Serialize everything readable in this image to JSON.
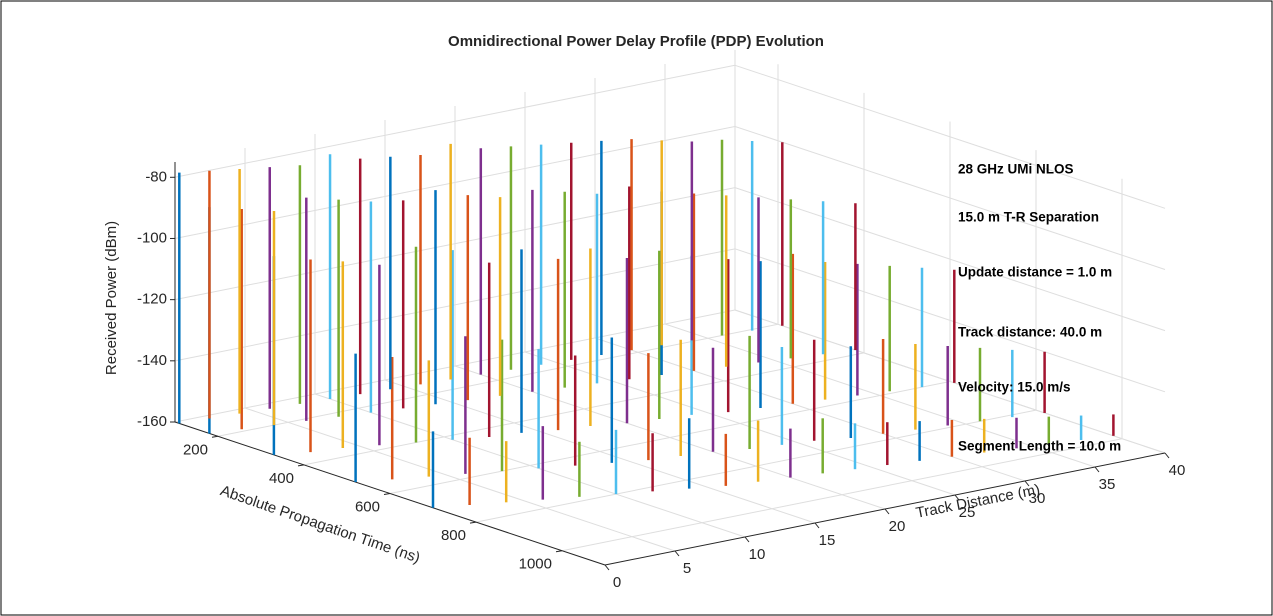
{
  "chart_data": {
    "type": "stem3",
    "title": "Omnidirectional Power Delay Profile (PDP) Evolution",
    "xlabel": "Track Distance (m)",
    "ylabel": "Absolute Propagation Time (ns)",
    "zlabel": "Received Power (dBm)",
    "xlim": [
      0,
      40
    ],
    "xticks": [
      0,
      5,
      10,
      15,
      20,
      25,
      30,
      35,
      40
    ],
    "ylim": [
      100,
      1100
    ],
    "yticks": [
      200,
      400,
      600,
      800,
      1000
    ],
    "zlim": [
      -160,
      -75
    ],
    "zticks": [
      -160,
      -140,
      -120,
      -100,
      -80
    ],
    "grid": true,
    "annotations": [
      "28 GHz UMi NLOS",
      "15.0 m T-R Separation",
      "Update distance = 1.0 m",
      "Track distance: 40.0 m",
      "Velocity: 15.0 m/s",
      "Segment Length = 10.0 m"
    ],
    "snapshots": [
      {
        "track": 0,
        "color": "#0072bd",
        "delay": [
          110,
          180,
          330,
          520,
          700
        ],
        "power": [
          -78,
          -86,
          -95,
          -118,
          -135
        ]
      },
      {
        "track": 2,
        "color": "#d95319",
        "delay": [
          115,
          190,
          350,
          540,
          720
        ],
        "power": [
          -79,
          -88,
          -97,
          -120,
          -138
        ]
      },
      {
        "track": 4,
        "color": "#edb120",
        "delay": [
          120,
          200,
          360,
          560,
          740
        ],
        "power": [
          -80,
          -90,
          -99,
          -122,
          -140
        ]
      },
      {
        "track": 6,
        "color": "#7e2f8e",
        "delay": [
          125,
          210,
          380,
          580,
          760
        ],
        "power": [
          -81,
          -87,
          -101,
          -115,
          -136
        ]
      },
      {
        "track": 8,
        "color": "#77ac30",
        "delay": [
          130,
          220,
          400,
          600,
          780
        ],
        "power": [
          -82,
          -89,
          -96,
          -117,
          -142
        ]
      },
      {
        "track": 10,
        "color": "#4dbeee",
        "delay": [
          135,
          230,
          420,
          620,
          800
        ],
        "power": [
          -80,
          -91,
          -98,
          -121,
          -139
        ]
      },
      {
        "track": 12,
        "color": "#a2142f",
        "delay": [
          140,
          240,
          440,
          640,
          820
        ],
        "power": [
          -83,
          -92,
          -103,
          -124,
          -141
        ]
      },
      {
        "track": 14,
        "color": "#0072bd",
        "delay": [
          145,
          250,
          450,
          660,
          840
        ],
        "power": [
          -84,
          -90,
          -100,
          -119,
          -137
        ]
      },
      {
        "track": 16,
        "color": "#d95319",
        "delay": [
          150,
          260,
          470,
          680,
          860
        ],
        "power": [
          -85,
          -93,
          -104,
          -125,
          -143
        ]
      },
      {
        "track": 18,
        "color": "#edb120",
        "delay": [
          155,
          270,
          480,
          690,
          870
        ],
        "power": [
          -83,
          -95,
          -102,
          -122,
          -140
        ]
      },
      {
        "track": 20,
        "color": "#7e2f8e",
        "delay": [
          160,
          280,
          500,
          700,
          880
        ],
        "power": [
          -86,
          -94,
          -106,
          -126,
          -144
        ]
      },
      {
        "track": 22,
        "color": "#77ac30",
        "delay": [
          165,
          290,
          510,
          720,
          890
        ],
        "power": [
          -87,
          -96,
          -105,
          -123,
          -142
        ]
      },
      {
        "track": 24,
        "color": "#4dbeee",
        "delay": [
          170,
          300,
          520,
          730,
          900
        ],
        "power": [
          -88,
          -98,
          -108,
          -128,
          -145
        ]
      },
      {
        "track": 26,
        "color": "#a2142f",
        "delay": [
          175,
          310,
          540,
          740,
          910
        ],
        "power": [
          -89,
          -97,
          -110,
          -127,
          -146
        ]
      },
      {
        "track": 28,
        "color": "#0072bd",
        "delay": [
          180,
          320,
          550,
          760,
          920
        ],
        "power": [
          -90,
          -100,
          -112,
          -130,
          -147
        ]
      },
      {
        "track": 30,
        "color": "#d95319",
        "delay": [
          185,
          330,
          560,
          770,
          930
        ],
        "power": [
          -91,
          -102,
          -111,
          -129,
          -148
        ]
      },
      {
        "track": 32,
        "color": "#edb120",
        "delay": [
          190,
          340,
          570,
          780,
          940
        ],
        "power": [
          -93,
          -104,
          -115,
          -132,
          -149
        ]
      },
      {
        "track": 34,
        "color": "#7e2f8e",
        "delay": [
          195,
          350,
          580,
          790,
          950
        ],
        "power": [
          -95,
          -106,
          -117,
          -134,
          -150
        ]
      },
      {
        "track": 36,
        "color": "#77ac30",
        "delay": [
          200,
          360,
          590,
          800,
          960
        ],
        "power": [
          -96,
          -108,
          -119,
          -136,
          -151
        ]
      },
      {
        "track": 38,
        "color": "#4dbeee",
        "delay": [
          205,
          370,
          600,
          810,
          970
        ],
        "power": [
          -98,
          -110,
          -121,
          -138,
          -152
        ]
      },
      {
        "track": 40,
        "color": "#a2142f",
        "delay": [
          210,
          380,
          610,
          820,
          980
        ],
        "power": [
          -100,
          -112,
          -123,
          -140,
          -153
        ]
      }
    ]
  }
}
